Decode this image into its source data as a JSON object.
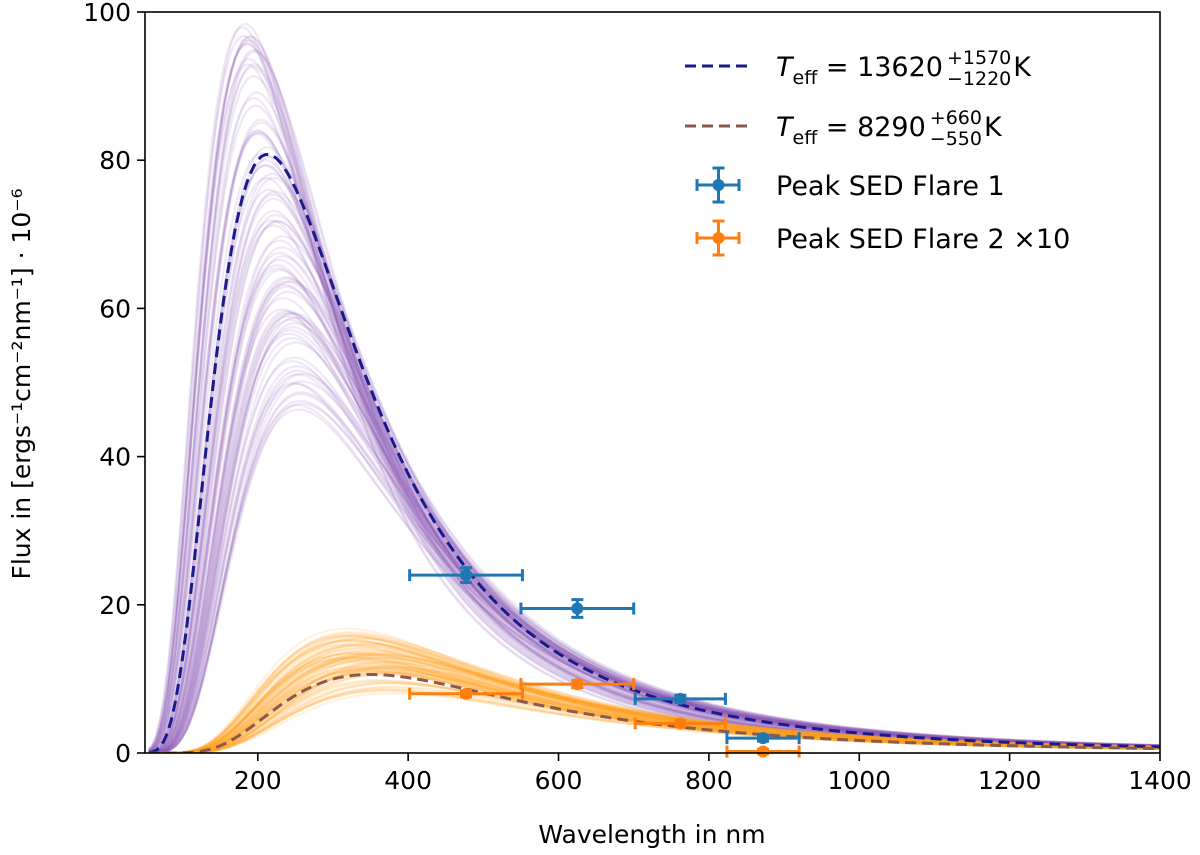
{
  "chart_data": {
    "type": "line",
    "title": "",
    "xlabel": "Wavelength in nm",
    "ylabel": "Flux in [ergs⁻¹cm⁻²nm⁻¹] · 10⁻⁶",
    "xlim": [
      50,
      1400
    ],
    "ylim": [
      0,
      100
    ],
    "xticks": [
      200,
      400,
      600,
      800,
      1000,
      1200,
      1400
    ],
    "yticks": [
      0,
      20,
      40,
      60,
      80,
      100
    ],
    "grid": false,
    "legend_position": "top-right",
    "series": [
      {
        "name": "T_eff = 13620 (+1570 / -1220) K",
        "kind": "blackbody-fit",
        "temperature_K": 13620,
        "temperature_err_plus": 1570,
        "temperature_err_minus": 1220,
        "peak_flux": 80.8,
        "color": "#1a1a8c",
        "linestyle": "dashed",
        "sample_color": "#8c5fb8",
        "samples_peak_flux_range": [
          47,
          100
        ],
        "samples_peak_wavelength_range": [
          180,
          260
        ]
      },
      {
        "name": "T_eff = 8290 (+660 / -550) K",
        "kind": "blackbody-fit",
        "temperature_K": 8290,
        "temperature_err_plus": 660,
        "temperature_err_minus": 550,
        "peak_flux": 10.6,
        "color": "#8c5a4a",
        "linestyle": "dashed",
        "sample_color": "#ffa320",
        "samples_peak_flux_range": [
          9.5,
          15.3
        ],
        "samples_peak_wavelength_range": [
          320,
          380
        ]
      },
      {
        "name": "Peak SED Flare 1",
        "kind": "errorbar",
        "color": "#1f77b4",
        "points": [
          {
            "x": 477,
            "y": 24.0,
            "xerr": 75,
            "yerr": 1.0
          },
          {
            "x": 625,
            "y": 19.5,
            "xerr": 75,
            "yerr": 1.2
          },
          {
            "x": 762,
            "y": 7.3,
            "xerr": 60,
            "yerr": 0.5
          },
          {
            "x": 872,
            "y": 2.0,
            "xerr": 48,
            "yerr": 0.4
          }
        ]
      },
      {
        "name": "Peak SED Flare 2 ×10",
        "kind": "errorbar",
        "color": "#ff7f0e",
        "points": [
          {
            "x": 477,
            "y": 8.0,
            "xerr": 75,
            "yerr": 0.4
          },
          {
            "x": 625,
            "y": 9.3,
            "xerr": 75,
            "yerr": 0.5
          },
          {
            "x": 762,
            "y": 4.0,
            "xerr": 60,
            "yerr": 0.4
          },
          {
            "x": 872,
            "y": 0.2,
            "xerr": 48,
            "yerr": 0.3
          }
        ]
      }
    ],
    "legend": [
      {
        "prefix": "T",
        "sub": "eff",
        "eq": " = 13620",
        "sup_err": "+1570",
        "sub_err": "−1220",
        "unit": " K"
      },
      {
        "prefix": "T",
        "sub": "eff",
        "eq": " = 8290",
        "sup_err": "+660",
        "sub_err": "−550",
        "unit": " K"
      },
      {
        "text": "Peak SED Flare 1"
      },
      {
        "text": "Peak SED Flare 2 ×10"
      }
    ]
  }
}
